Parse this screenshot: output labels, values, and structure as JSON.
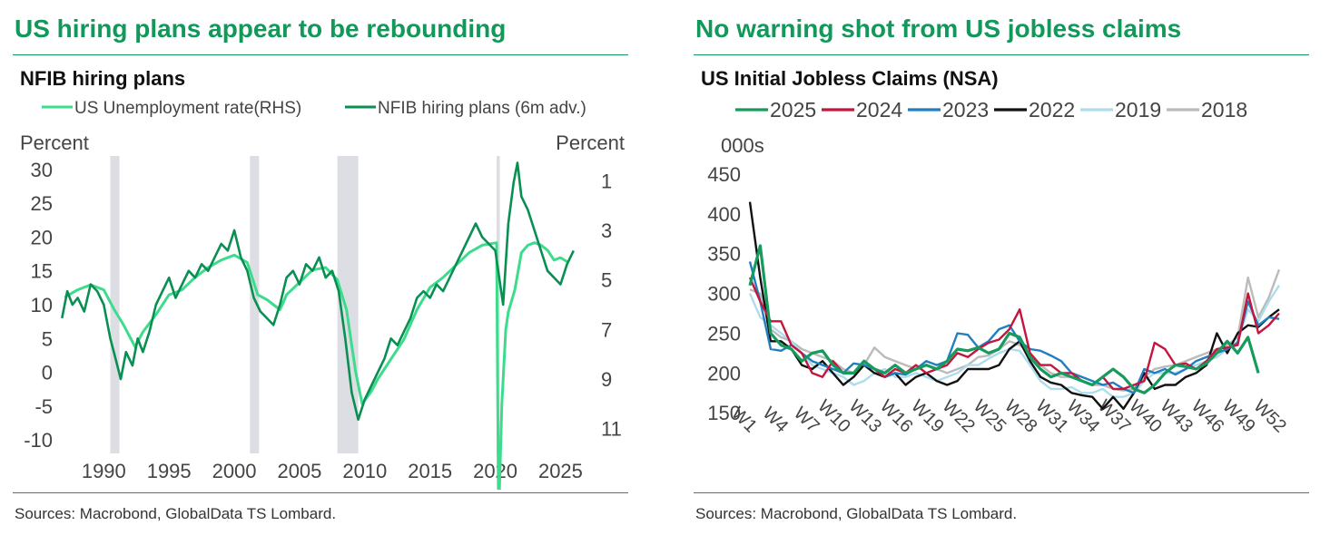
{
  "left_panel": {
    "headline": "US hiring plans appear to be rebounding",
    "sources": "Sources: Macrobond, GlobalData TS Lombard."
  },
  "right_panel": {
    "headline": "No warning shot from US jobless claims",
    "sources": "Sources: Macrobond, GlobalData TS Lombard."
  },
  "chart_data": [
    {
      "type": "line",
      "title": "NFIB hiring plans",
      "ylabel": "Percent",
      "y2label": "Percent",
      "ylim": [
        -12,
        32
      ],
      "y2lim": [
        12,
        0
      ],
      "yticks": [
        30,
        25,
        20,
        15,
        10,
        5,
        0,
        -5,
        -10
      ],
      "y2ticks": [
        1,
        3,
        5,
        7,
        9,
        11
      ],
      "xlim": [
        1986.5,
        2026.5
      ],
      "xticks": [
        1990,
        1995,
        2000,
        2005,
        2010,
        2015,
        2020,
        2025
      ],
      "grid": false,
      "legend_position": "top",
      "recessions": [
        [
          1990.5,
          1991.2
        ],
        [
          2001.2,
          2001.9
        ],
        [
          2007.9,
          2009.5
        ],
        [
          2020.1,
          2020.35
        ]
      ],
      "series": [
        {
          "name": "US Unemployment rate(RHS)",
          "axis": "right",
          "color": "#3ddc8d",
          "points": [
            [
              1987,
              5.7
            ],
            [
              1988,
              5.4
            ],
            [
              1989,
              5.2
            ],
            [
              1990,
              5.4
            ],
            [
              1990.8,
              6.2
            ],
            [
              1991.5,
              6.8
            ],
            [
              1992.4,
              7.7
            ],
            [
              1993,
              7.1
            ],
            [
              1994,
              6.4
            ],
            [
              1995,
              5.6
            ],
            [
              1996,
              5.4
            ],
            [
              1997,
              4.9
            ],
            [
              1998,
              4.5
            ],
            [
              1999,
              4.2
            ],
            [
              2000,
              4.0
            ],
            [
              2001,
              4.3
            ],
            [
              2001.8,
              5.6
            ],
            [
              2002.5,
              5.8
            ],
            [
              2003.5,
              6.2
            ],
            [
              2004,
              5.6
            ],
            [
              2005,
              5.1
            ],
            [
              2006,
              4.6
            ],
            [
              2007,
              4.5
            ],
            [
              2007.9,
              5.0
            ],
            [
              2008.6,
              6.2
            ],
            [
              2009.3,
              8.7
            ],
            [
              2009.8,
              10.0
            ],
            [
              2010.5,
              9.5
            ],
            [
              2011,
              9.0
            ],
            [
              2012,
              8.2
            ],
            [
              2013,
              7.4
            ],
            [
              2014,
              6.2
            ],
            [
              2015,
              5.3
            ],
            [
              2016,
              4.9
            ],
            [
              2017,
              4.4
            ],
            [
              2018,
              3.9
            ],
            [
              2019,
              3.6
            ],
            [
              2020.1,
              3.5
            ],
            [
              2020.25,
              14.7
            ],
            [
              2020.5,
              10.0
            ],
            [
              2020.8,
              7.0
            ],
            [
              2021,
              6.3
            ],
            [
              2021.5,
              5.4
            ],
            [
              2022,
              3.9
            ],
            [
              2022.5,
              3.6
            ],
            [
              2023,
              3.5
            ],
            [
              2023.5,
              3.6
            ],
            [
              2024,
              3.8
            ],
            [
              2024.5,
              4.2
            ],
            [
              2025,
              4.1
            ],
            [
              2025.6,
              4.3
            ]
          ]
        },
        {
          "name": "NFIB hiring plans (6m adv.)",
          "axis": "left",
          "color": "#0a8f53",
          "points": [
            [
              1986.8,
              8
            ],
            [
              1987.2,
              12
            ],
            [
              1987.6,
              10
            ],
            [
              1988,
              11
            ],
            [
              1988.5,
              9
            ],
            [
              1989,
              13
            ],
            [
              1989.5,
              12
            ],
            [
              1990,
              10
            ],
            [
              1990.5,
              5
            ],
            [
              1990.9,
              2
            ],
            [
              1991.3,
              -1
            ],
            [
              1991.7,
              3
            ],
            [
              1992.2,
              1
            ],
            [
              1992.6,
              5
            ],
            [
              1993,
              3
            ],
            [
              1993.5,
              6
            ],
            [
              1994,
              10
            ],
            [
              1994.5,
              12
            ],
            [
              1995,
              14
            ],
            [
              1995.5,
              11
            ],
            [
              1996,
              13
            ],
            [
              1996.5,
              15
            ],
            [
              1997,
              14
            ],
            [
              1997.5,
              16
            ],
            [
              1998,
              15
            ],
            [
              1998.5,
              17
            ],
            [
              1999,
              19
            ],
            [
              1999.5,
              18
            ],
            [
              2000,
              21
            ],
            [
              2000.5,
              17
            ],
            [
              2001,
              15
            ],
            [
              2001.5,
              11
            ],
            [
              2002,
              9
            ],
            [
              2002.5,
              8
            ],
            [
              2003,
              7
            ],
            [
              2003.5,
              10
            ],
            [
              2004,
              14
            ],
            [
              2004.5,
              15
            ],
            [
              2005,
              13
            ],
            [
              2005.5,
              16
            ],
            [
              2006,
              15
            ],
            [
              2006.5,
              17
            ],
            [
              2007,
              14
            ],
            [
              2007.5,
              15
            ],
            [
              2008,
              12
            ],
            [
              2008.5,
              5
            ],
            [
              2009,
              -3
            ],
            [
              2009.5,
              -7
            ],
            [
              2010,
              -4
            ],
            [
              2010.5,
              -2
            ],
            [
              2011,
              0
            ],
            [
              2011.5,
              2
            ],
            [
              2012,
              5
            ],
            [
              2012.5,
              4
            ],
            [
              2013,
              6
            ],
            [
              2013.5,
              8
            ],
            [
              2014,
              11
            ],
            [
              2014.5,
              12
            ],
            [
              2015,
              11
            ],
            [
              2015.5,
              13
            ],
            [
              2016,
              12
            ],
            [
              2016.5,
              14
            ],
            [
              2017,
              16
            ],
            [
              2017.5,
              18
            ],
            [
              2018,
              20
            ],
            [
              2018.5,
              22
            ],
            [
              2019,
              20
            ],
            [
              2019.5,
              19
            ],
            [
              2020,
              18
            ],
            [
              2020.3,
              14
            ],
            [
              2020.6,
              10
            ],
            [
              2021,
              22
            ],
            [
              2021.4,
              28
            ],
            [
              2021.7,
              31
            ],
            [
              2022,
              26
            ],
            [
              2022.5,
              24
            ],
            [
              2023,
              21
            ],
            [
              2023.5,
              18
            ],
            [
              2024,
              15
            ],
            [
              2024.5,
              14
            ],
            [
              2025,
              13
            ],
            [
              2025.5,
              16
            ],
            [
              2026,
              18
            ]
          ]
        }
      ]
    },
    {
      "type": "line",
      "title": "US Initial Jobless Claims (NSA)",
      "ylabel": "000s",
      "ylim": [
        140,
        450
      ],
      "yticks": [
        450,
        400,
        350,
        300,
        250,
        200,
        150
      ],
      "xticks": [
        "W1",
        "W4",
        "W7",
        "W10",
        "W13",
        "W16",
        "W19",
        "W22",
        "W25",
        "W28",
        "W31",
        "W34",
        "W37",
        "W40",
        "W43",
        "W46",
        "W49",
        "W52"
      ],
      "grid": false,
      "legend_position": "top",
      "series": [
        {
          "name": "2025",
          "color": "#169b5c",
          "values": [
            310,
            360,
            250,
            235,
            230,
            215,
            225,
            228,
            210,
            200,
            200,
            215,
            205,
            200,
            210,
            200,
            205,
            210,
            205,
            215,
            230,
            228,
            232,
            225,
            230,
            250,
            245,
            220,
            205,
            195,
            200,
            195,
            190,
            185,
            195,
            205,
            195,
            180,
            175,
            185,
            200,
            210,
            208,
            205,
            212,
            225,
            240,
            225,
            245,
            200
          ]
        },
        {
          "name": "2024",
          "color": "#c4153c",
          "values": [
            320,
            290,
            265,
            265,
            235,
            225,
            200,
            195,
            215,
            200,
            200,
            215,
            205,
            195,
            205,
            200,
            210,
            200,
            205,
            210,
            225,
            220,
            230,
            238,
            242,
            255,
            280,
            225,
            210,
            210,
            200,
            200,
            190,
            185,
            195,
            180,
            180,
            185,
            190,
            238,
            230,
            210,
            212,
            205,
            215,
            230,
            232,
            235,
            300,
            250,
            260,
            275
          ]
        },
        {
          "name": "2023",
          "color": "#1f7fc0",
          "values": [
            340,
            290,
            230,
            228,
            235,
            225,
            215,
            210,
            205,
            200,
            212,
            210,
            205,
            195,
            200,
            198,
            205,
            215,
            210,
            215,
            250,
            248,
            232,
            240,
            255,
            260,
            240,
            230,
            228,
            222,
            215,
            200,
            195,
            190,
            185,
            188,
            180,
            175,
            205,
            200,
            205,
            198,
            205,
            215,
            220,
            225,
            230,
            238,
            290,
            260,
            270,
            268
          ]
        },
        {
          "name": "2022",
          "color": "#111111",
          "values": [
            415,
            320,
            240,
            240,
            230,
            210,
            205,
            215,
            200,
            185,
            195,
            210,
            200,
            195,
            200,
            185,
            195,
            200,
            190,
            185,
            190,
            205,
            205,
            205,
            210,
            230,
            240,
            215,
            195,
            188,
            185,
            175,
            172,
            170,
            155,
            170,
            155,
            175,
            200,
            180,
            185,
            185,
            195,
            200,
            210,
            250,
            225,
            250,
            260,
            258,
            270,
            280
          ]
        },
        {
          "name": "2019",
          "color": "#aedcee",
          "values": [
            300,
            270,
            260,
            250,
            240,
            225,
            210,
            205,
            200,
            195,
            185,
            190,
            200,
            205,
            195,
            195,
            200,
            195,
            190,
            195,
            200,
            210,
            210,
            218,
            225,
            230,
            228,
            210,
            190,
            180,
            180,
            182,
            175,
            175,
            180,
            170,
            170,
            175,
            190,
            200,
            200,
            200,
            205,
            210,
            215,
            220,
            230,
            240,
            280,
            265,
            290,
            310
          ]
        },
        {
          "name": "2018",
          "color": "#bbbbbb",
          "values": [
            305,
            300,
            255,
            245,
            240,
            230,
            225,
            220,
            215,
            205,
            200,
            210,
            232,
            220,
            215,
            210,
            205,
            210,
            205,
            200,
            205,
            210,
            220,
            222,
            230,
            240,
            235,
            225,
            210,
            200,
            195,
            195,
            190,
            185,
            185,
            180,
            178,
            180,
            195,
            205,
            208,
            210,
            215,
            220,
            225,
            230,
            235,
            245,
            320,
            270,
            295,
            330
          ]
        }
      ]
    }
  ]
}
